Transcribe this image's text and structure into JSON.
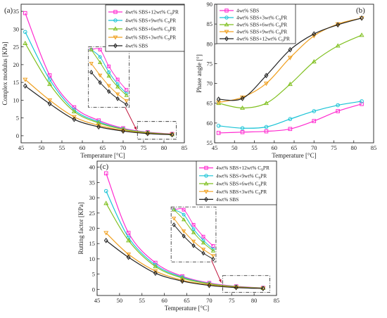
{
  "chart_data": [
    {
      "panel_label": "(a)",
      "type": "line",
      "xlabel": "Temperature [°C]",
      "ylabel": "Complex modulus [KPa]",
      "xlim": [
        45,
        85
      ],
      "ylim": [
        -2,
        37
      ],
      "xticks": [
        "45",
        "50",
        "55",
        "60",
        "65",
        "70",
        "75",
        "80",
        "85"
      ],
      "yticks": [
        "0",
        "5",
        "10",
        "15",
        "20",
        "25",
        "30",
        "35"
      ],
      "legend_position": "top-right",
      "x": [
        46,
        52,
        58,
        64,
        70,
        76,
        82
      ],
      "series": [
        {
          "name": "4wt% SBS+12wt% C9PR",
          "color": "#ff2bd0",
          "marker": "square",
          "values": [
            34.5,
            17.0,
            8.0,
            4.3,
            2.1,
            1.0,
            0.5
          ]
        },
        {
          "name": "4wt% SBS+9wt% C9PR",
          "color": "#19c3d6",
          "marker": "circle",
          "values": [
            29.2,
            15.8,
            7.3,
            3.9,
            1.9,
            0.9,
            0.4
          ]
        },
        {
          "name": "4wt% SBS+6wt% C9PR",
          "color": "#80c020",
          "marker": "triangle",
          "values": [
            26.0,
            14.5,
            6.8,
            3.6,
            1.8,
            0.85,
            0.4
          ]
        },
        {
          "name": "4wt% SBS+3wt% C9PR",
          "color": "#f0a020",
          "marker": "triangle-down",
          "values": [
            15.8,
            10.0,
            5.3,
            2.9,
            1.5,
            0.7,
            0.35
          ]
        },
        {
          "name": "4wt% SBS",
          "color": "#222222",
          "marker": "diamond",
          "values": [
            14.0,
            9.0,
            4.6,
            2.5,
            1.3,
            0.6,
            0.3
          ]
        }
      ]
    },
    {
      "panel_label": "(b)",
      "type": "line",
      "xlabel": "Temperature [°C]",
      "ylabel": "Phase angle [°]",
      "xlim": [
        45,
        85
      ],
      "ylim": [
        55,
        90
      ],
      "xticks": [
        "45",
        "50",
        "55",
        "60",
        "65",
        "70",
        "75",
        "80",
        "85"
      ],
      "yticks": [
        "55",
        "60",
        "65",
        "70",
        "75",
        "80",
        "85",
        "90"
      ],
      "legend_position": "top-left",
      "x": [
        46,
        52,
        58,
        64,
        70,
        76,
        82
      ],
      "series": [
        {
          "name": "4wt% SBS",
          "color": "#ff2bd0",
          "marker": "square",
          "values": [
            57.5,
            57.7,
            57.9,
            58.5,
            60.5,
            63.0,
            64.8
          ]
        },
        {
          "name": "4wt% SBS+3wt% C9PR",
          "color": "#19c3d6",
          "marker": "circle",
          "values": [
            59.3,
            58.7,
            59.0,
            61.0,
            63.0,
            64.5,
            65.5
          ]
        },
        {
          "name": "4wt% SBS+6wt% C9PR",
          "color": "#80c020",
          "marker": "triangle",
          "values": [
            65.0,
            63.8,
            65.0,
            69.8,
            75.5,
            79.5,
            82.2
          ]
        },
        {
          "name": "4wt% SBS+9wt% C9PR",
          "color": "#f0a020",
          "marker": "triangle-down",
          "values": [
            65.2,
            66.5,
            70.0,
            76.5,
            82.0,
            85.0,
            86.5
          ]
        },
        {
          "name": "4wt% SBS+12wt% C9PR",
          "color": "#222222",
          "marker": "diamond",
          "values": [
            66.0,
            66.2,
            72.0,
            78.5,
            82.5,
            84.8,
            86.5
          ]
        }
      ]
    },
    {
      "panel_label": "(c)",
      "type": "line",
      "xlabel": "Temperature [°C]",
      "ylabel": "Rutting factor [KPa]",
      "xlim": [
        45,
        85
      ],
      "ylim": [
        -2,
        42
      ],
      "xticks": [
        "45",
        "50",
        "55",
        "60",
        "65",
        "70",
        "75",
        "80",
        "85"
      ],
      "yticks": [
        "0",
        "5",
        "10",
        "15",
        "20",
        "25",
        "30",
        "35",
        "40"
      ],
      "legend_position": "top-right",
      "x": [
        47,
        52,
        58,
        64,
        70,
        76,
        82
      ],
      "series": [
        {
          "name": "4wt% SBS+12wt% C9PR",
          "color": "#ff2bd0",
          "marker": "square",
          "values": [
            38.0,
            18.5,
            8.7,
            4.3,
            2.1,
            1.0,
            0.5
          ]
        },
        {
          "name": "4wt% SBS+9wt% C9PR",
          "color": "#19c3d6",
          "marker": "circle",
          "values": [
            32.2,
            17.0,
            8.0,
            4.0,
            1.9,
            0.9,
            0.45
          ]
        },
        {
          "name": "4wt% SBS+6wt% C9PR",
          "color": "#80c020",
          "marker": "triangle",
          "values": [
            28.2,
            16.0,
            7.5,
            3.7,
            1.8,
            0.85,
            0.4
          ]
        },
        {
          "name": "4wt% SBS+3wt% C9PR",
          "color": "#f0a020",
          "marker": "triangle-down",
          "values": [
            18.5,
            11.5,
            6.0,
            3.0,
            1.5,
            0.7,
            0.35
          ]
        },
        {
          "name": "4wt% SBS",
          "color": "#222222",
          "marker": "diamond",
          "values": [
            16.0,
            10.5,
            5.3,
            2.7,
            1.3,
            0.6,
            0.3
          ]
        }
      ]
    }
  ]
}
